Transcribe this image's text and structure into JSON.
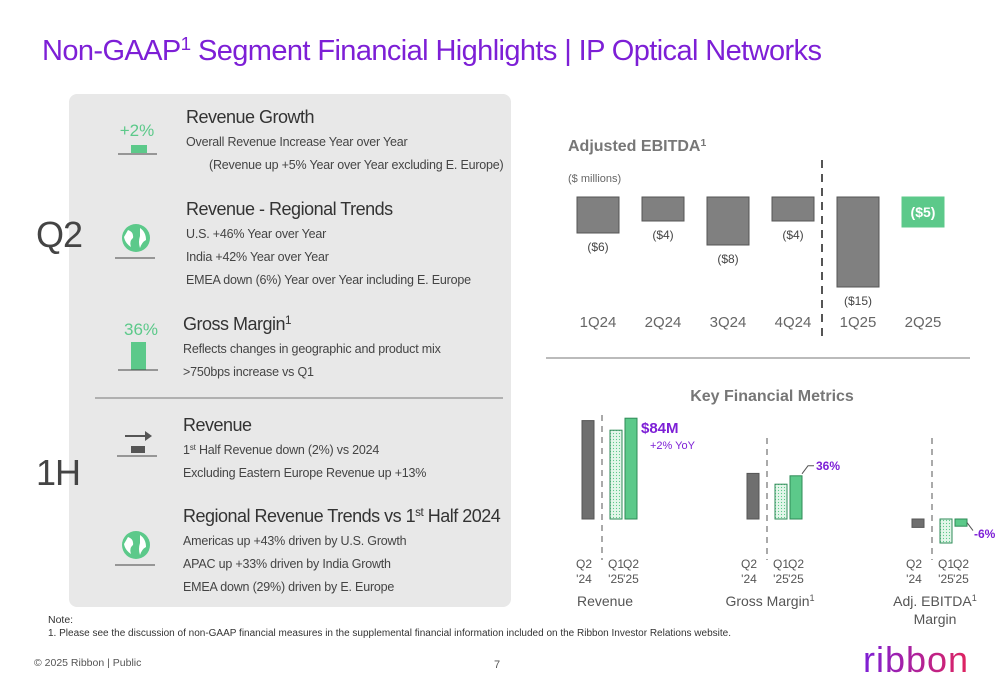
{
  "title": [
    "Non-GAAP",
    {
      "sup": "1"
    },
    " Segment Financial Highlights | IP Optical Networks"
  ],
  "panel": {
    "groups": [
      {
        "label": "Q2",
        "items": [
          {
            "badge": "+2%",
            "heading": "Revenue Growth",
            "lines": [
              "Overall Revenue Increase Year over Year",
              "(Revenue up +5% Year over Year excluding E. Europe)"
            ]
          },
          {
            "heading": "Revenue - Regional Trends",
            "lines": [
              "U.S. +46% Year over Year",
              "India +42% Year over Year",
              "EMEA down (6%) Year over Year including E. Europe"
            ]
          },
          {
            "badge": "36%",
            "heading": [
              "Gross Margin",
              {
                "sup": "1"
              }
            ],
            "lines": [
              "Reflects changes in geographic and product mix",
              ">750bps increase vs Q1"
            ]
          }
        ]
      },
      {
        "label": "1H",
        "items": [
          {
            "heading": "Revenue",
            "lines": [
              [
                "1",
                {
                  "sup": "st"
                },
                " Half Revenue down (2%) vs 2024"
              ],
              "Excluding Eastern Europe Revenue up +13%"
            ]
          },
          {
            "heading": [
              "Regional  Revenue Trends vs 1",
              {
                "sup": "st"
              },
              " Half 2024"
            ],
            "lines": [
              "Americas up +43% driven by U.S. Growth",
              "APAC up +33% driven by India Growth",
              "EMEA down (29%) driven by E. Europe"
            ]
          }
        ]
      }
    ]
  },
  "chart_data": [
    {
      "type": "bar",
      "title": [
        "Adjusted EBITDA",
        {
          "sup": "1"
        }
      ],
      "subtitle": "($ millions)",
      "categories": [
        "1Q24",
        "2Q24",
        "3Q24",
        "4Q24",
        "1Q25",
        "2Q25"
      ],
      "values": [
        -6,
        -4,
        -8,
        -4,
        -15,
        -5
      ],
      "value_labels": [
        "($6)",
        "($4)",
        "($8)",
        "($4)",
        "($15)",
        "($5)"
      ],
      "colors": [
        "#808080",
        "#808080",
        "#808080",
        "#808080",
        "#808080",
        "#5cc98a"
      ]
    },
    {
      "type": "grouped-bar",
      "title": "Key Financial Metrics",
      "colors": [
        "#6f6f6f",
        "#e3f6ea",
        "#5cc98a"
      ],
      "groups": [
        {
          "name": "Revenue",
          "categories": [
            [
              "Q2",
              "'24"
            ],
            [
              "Q1",
              "'25"
            ],
            [
              "Q2",
              "'25"
            ]
          ],
          "values": [
            82,
            74,
            84
          ],
          "value_labels": [
            null,
            null,
            "$84M"
          ],
          "note": "+2% YoY"
        },
        {
          "name": [
            "Gross Margin",
            {
              "sup": "1"
            }
          ],
          "categories": [
            [
              "Q2",
              "'24"
            ],
            [
              "Q1",
              "'25"
            ],
            [
              "Q2",
              "'25"
            ]
          ],
          "values": [
            38,
            29,
            36
          ],
          "value_labels": [
            null,
            null,
            "36%"
          ]
        },
        {
          "name": [
            "Adj. EBITDA",
            {
              "sup": "1"
            }
          ],
          "name_line2": "Margin",
          "categories": [
            [
              "Q2",
              "'24"
            ],
            [
              "Q1",
              "'25"
            ],
            [
              "Q2",
              "'25"
            ]
          ],
          "values": [
            -7,
            -20,
            -6
          ],
          "value_labels": [
            null,
            null,
            "-6%"
          ]
        }
      ]
    }
  ],
  "note": {
    "label": "Note:",
    "text": "1.  Please see the discussion of non-GAAP financial measures in the supplemental financial information included on the Ribbon Investor Relations website."
  },
  "footer": {
    "copyright": "© 2025 Ribbon | Public",
    "page": "7",
    "logo": "ribbon"
  }
}
